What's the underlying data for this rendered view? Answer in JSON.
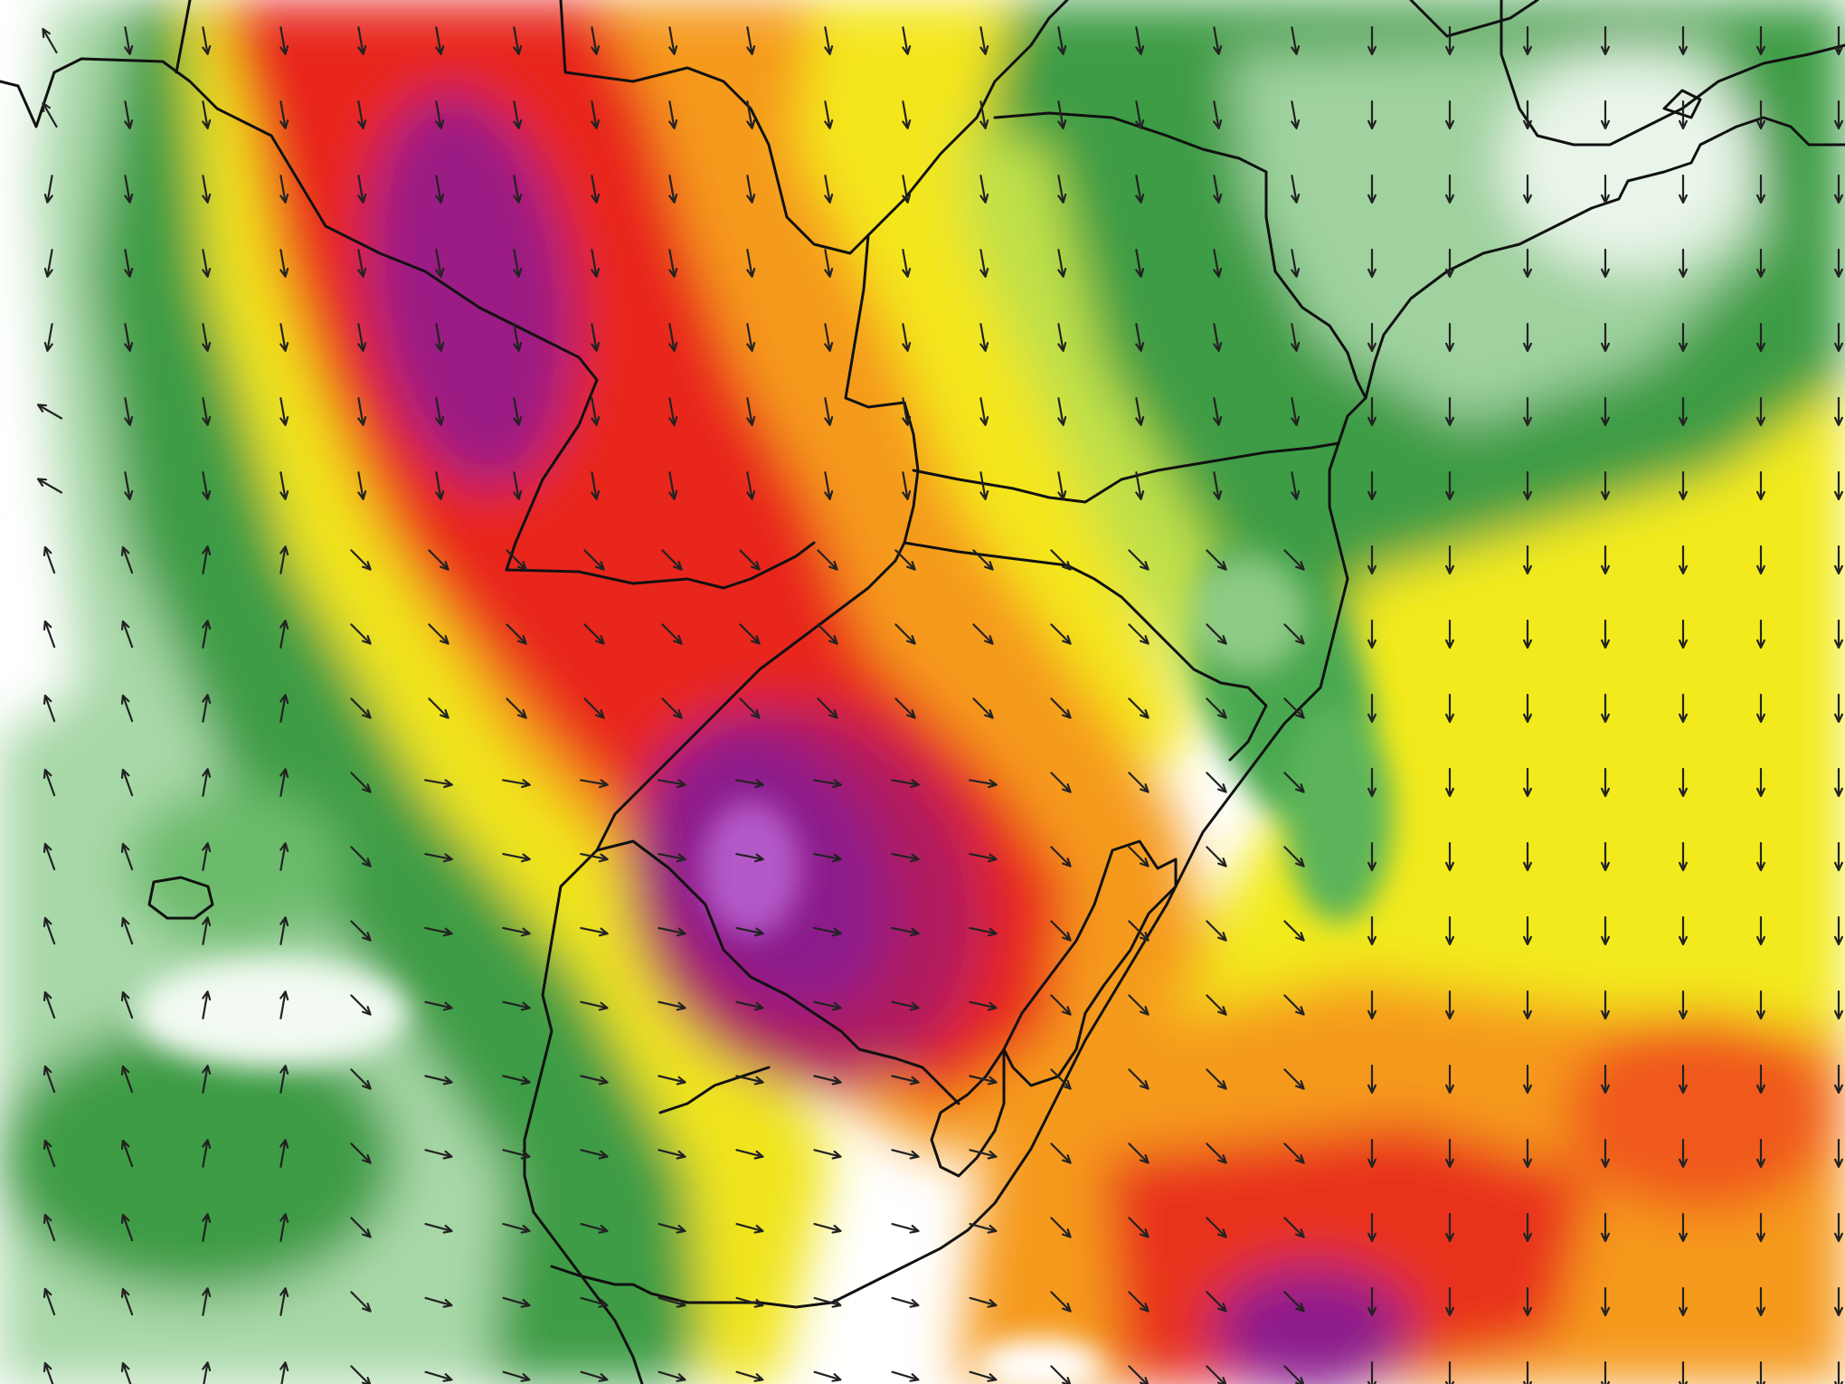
{
  "map": {
    "type": "weather-model-field",
    "overlay": "wind-direction-arrows",
    "palette": {
      "none": "#ffffff",
      "light_green": "#9fd29f",
      "green": "#3f9f46",
      "dark_green": "#1f7d2f",
      "yellow_green": "#c8e24a",
      "yellow": "#f6f218",
      "orange_yellow": "#f8c51c",
      "orange": "#f5901e",
      "red_orange": "#f2581c",
      "red": "#e8201e",
      "magenta": "#b41e5a",
      "purple": "#8e1e88",
      "violet": "#9a40b0",
      "lines": "#111111",
      "arrows": "#222222"
    }
  }
}
